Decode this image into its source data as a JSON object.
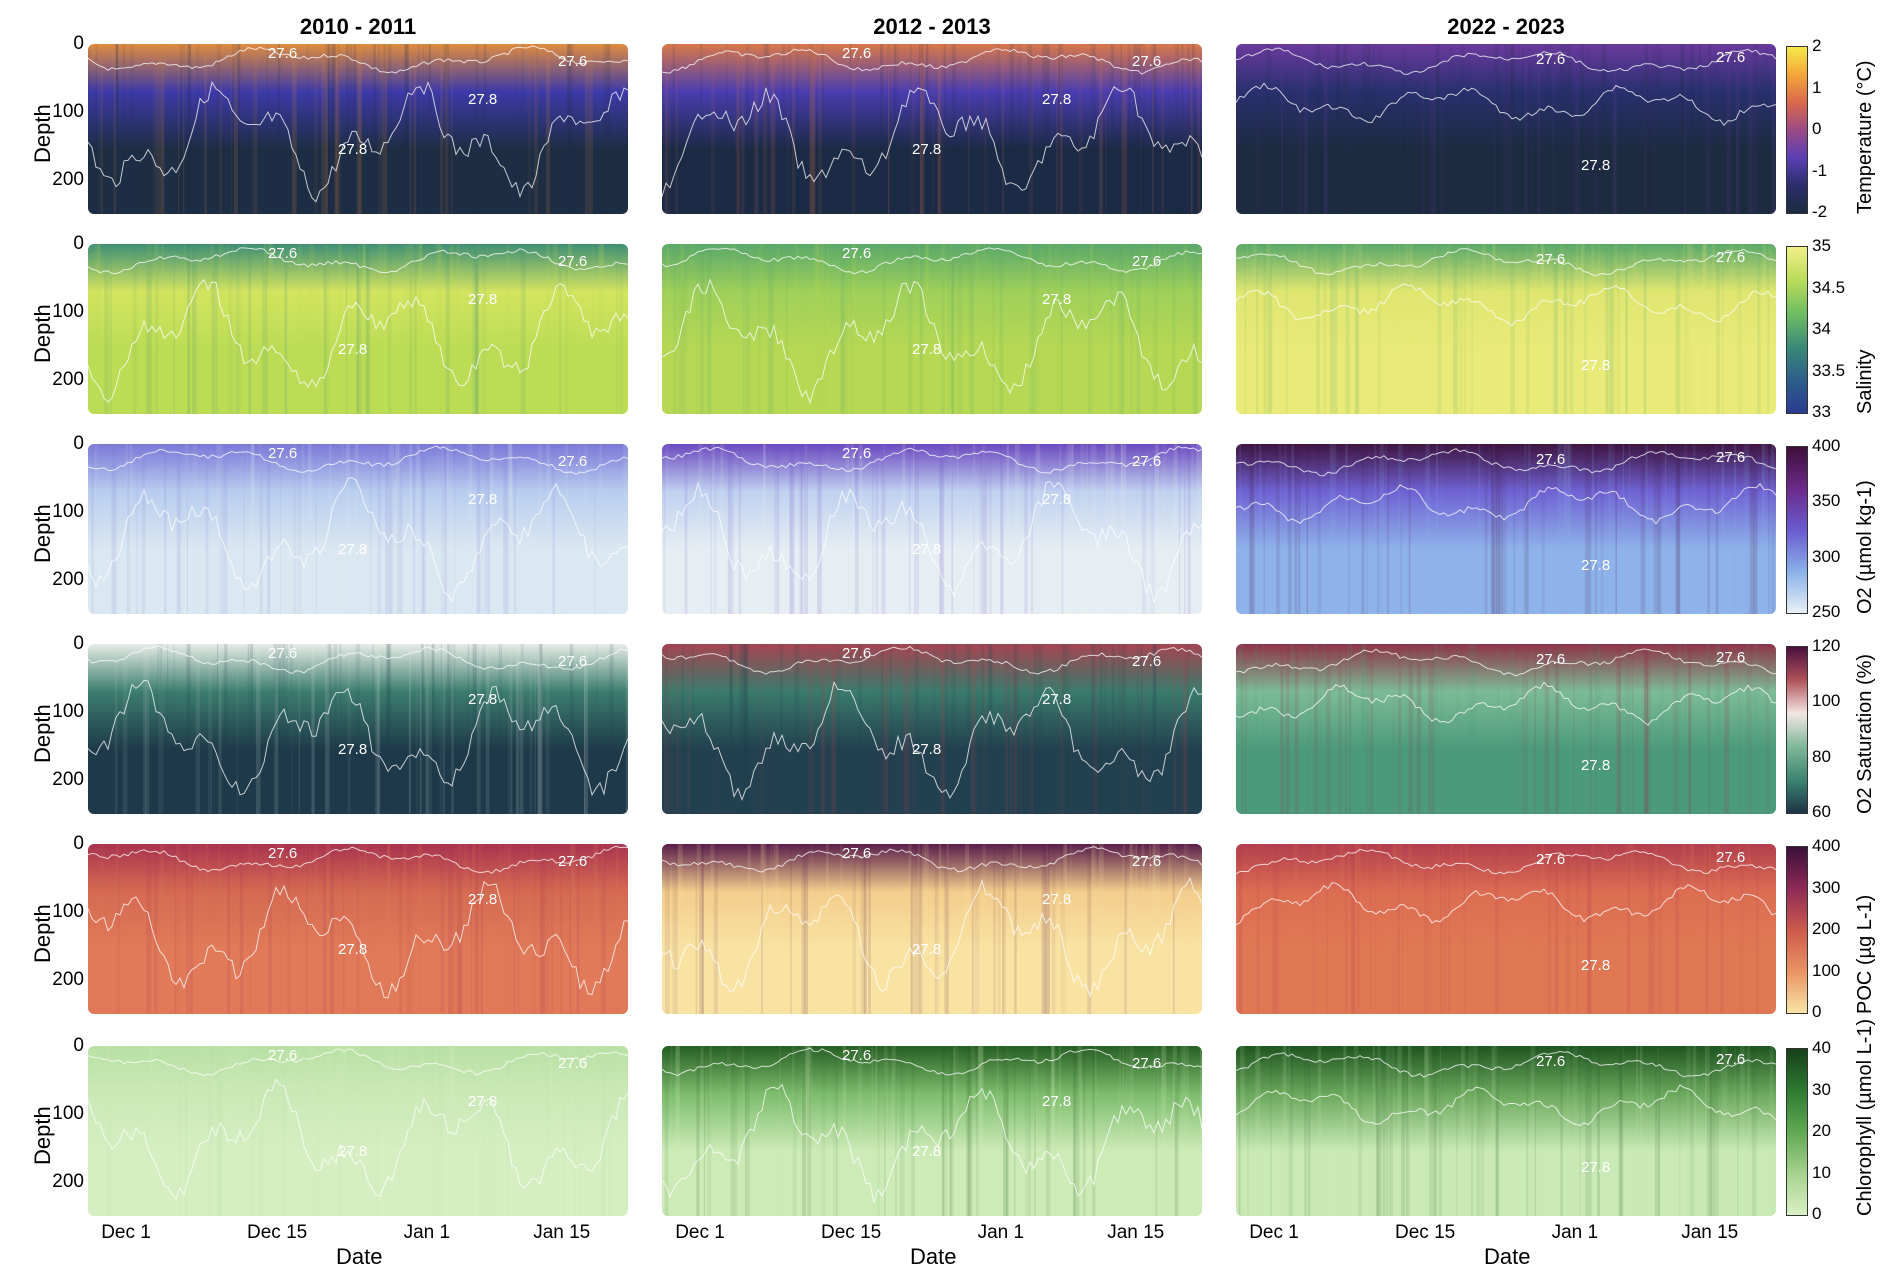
{
  "chart_data": {
    "type": "heatmap",
    "columns": [
      "2010 - 2011",
      "2012 - 2013",
      "2022 - 2023"
    ],
    "xlabel": "Date",
    "ylabel": "Depth",
    "y_ticks": [
      "0",
      "100",
      "200"
    ],
    "x_ticks": [
      "Dec 1",
      "Dec 15",
      "Jan 1",
      "Jan 15"
    ],
    "contour_labels": [
      "27.6",
      "27.8"
    ],
    "variables": [
      {
        "label": "Temperature (°C)",
        "ticks": [
          "2",
          "1",
          "0",
          "-1",
          "-2"
        ],
        "colors": [
          "#f6e94a",
          "#f4a63a",
          "#d9694c",
          "#9b4a86",
          "#5b3fb5",
          "#2b2f6b",
          "#1c2b3f"
        ],
        "fields": [
          {
            "deep": "#1d2d44",
            "shallow": "#3d3aa8",
            "top": "#e08c3f"
          },
          {
            "deep": "#1b2a45",
            "shallow": "#4a3db0",
            "top": "#d9784a"
          },
          {
            "deep": "#1c2b40",
            "shallow": "#28306e",
            "top": "#6a3a9e"
          }
        ]
      },
      {
        "label": "Salinity",
        "ticks": [
          "35",
          "34.5",
          "34",
          "33.5",
          "33"
        ],
        "colors": [
          "#f1ef8a",
          "#b9dc5a",
          "#6fbe61",
          "#3a8a78",
          "#2d5f8a",
          "#2a3b90"
        ],
        "fields": [
          {
            "deep": "#bcdc55",
            "shallow": "#d3e460",
            "top": "#3f8f75"
          },
          {
            "deep": "#b6d854",
            "shallow": "#9fd05a",
            "top": "#5aa86a"
          },
          {
            "deep": "#e9ea78",
            "shallow": "#dfe670",
            "top": "#5aa86a"
          }
        ]
      },
      {
        "label": "O2 (µmol kg-1)",
        "ticks": [
          "400",
          "350",
          "300",
          "250"
        ],
        "colors": [
          "#3d0f3a",
          "#6b2a8a",
          "#6a5bd0",
          "#8ab0ea",
          "#e8f0f4"
        ],
        "fields": [
          {
            "deep": "#dbe8f1",
            "shallow": "#b8cdef",
            "top": "#7b78d8"
          },
          {
            "deep": "#e6eef3",
            "shallow": "#bfd1f0",
            "top": "#6c4ac0"
          },
          {
            "deep": "#8eb2ea",
            "shallow": "#6f62d3",
            "top": "#3e1441"
          }
        ]
      },
      {
        "label": "O2 Saturation (%)",
        "ticks": [
          "120",
          "100",
          "80",
          "60"
        ],
        "colors": [
          "#4a0f3c",
          "#b0525a",
          "#f3e6e3",
          "#7fb89a",
          "#3c8572",
          "#1d3446"
        ],
        "fields": [
          {
            "deep": "#1e3a4a",
            "shallow": "#3c7d6e",
            "top": "#e6ece6"
          },
          {
            "deep": "#22404f",
            "shallow": "#3a7b6c",
            "top": "#a44552"
          },
          {
            "deep": "#4c9a7c",
            "shallow": "#7dbb97",
            "top": "#8e3448"
          }
        ]
      },
      {
        "label": "POC (µg L-1)",
        "ticks": [
          "400",
          "300",
          "200",
          "100",
          "0"
        ],
        "colors": [
          "#3a0f3a",
          "#8e2a57",
          "#cc5a4c",
          "#ea9363",
          "#f8e4a6"
        ],
        "fields": [
          {
            "deep": "#e07a58",
            "shallow": "#d56a52",
            "top": "#a8344f"
          },
          {
            "deep": "#f9e3a3",
            "shallow": "#f3cd8c",
            "top": "#5a1e4b"
          },
          {
            "deep": "#e07854",
            "shallow": "#dc6d52",
            "top": "#b23e4e"
          }
        ]
      },
      {
        "label": "Chlorophyll (µmol L-1)",
        "ticks": [
          "40",
          "30",
          "20",
          "10",
          "0"
        ],
        "colors": [
          "#163f1b",
          "#2e7a30",
          "#60a853",
          "#a6d28e",
          "#d9f0c4"
        ],
        "fields": [
          {
            "deep": "#d5efc2",
            "shallow": "#cbe9b7",
            "top": "#b8e0a4"
          },
          {
            "deep": "#cdebb7",
            "shallow": "#7cbc6c",
            "top": "#275f24"
          },
          {
            "deep": "#c9e9b5",
            "shallow": "#6aa85c",
            "top": "#1f5521"
          }
        ]
      }
    ]
  }
}
